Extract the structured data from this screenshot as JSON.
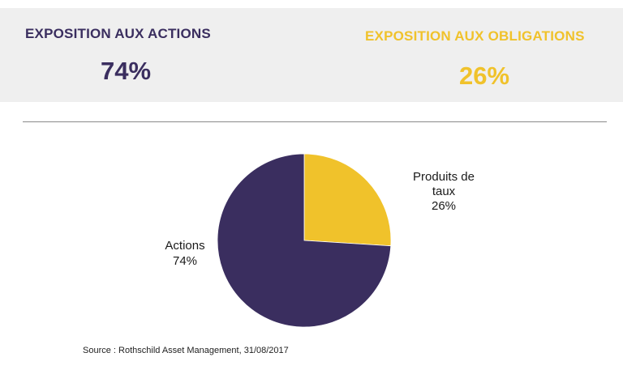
{
  "banner": {
    "actions_label": "EXPOSITION AUX ACTIONS",
    "actions_value": "74%",
    "obligations_label": "EXPOSITION AUX OBLIGATIONS",
    "obligations_value": "26%"
  },
  "source": "Source : Rothschild Asset Management, 31/08/2017",
  "colors": {
    "actions": "#3a2e5f",
    "produits_de_taux": "#f0c22b"
  },
  "chart_data": {
    "type": "pie",
    "slices": [
      {
        "label_lines": [
          "Produits de",
          "taux",
          "26%"
        ],
        "value": 26,
        "color": "#f0c22b"
      },
      {
        "label_lines": [
          "Actions",
          "74%"
        ],
        "value": 74,
        "color": "#3a2e5f"
      }
    ]
  }
}
